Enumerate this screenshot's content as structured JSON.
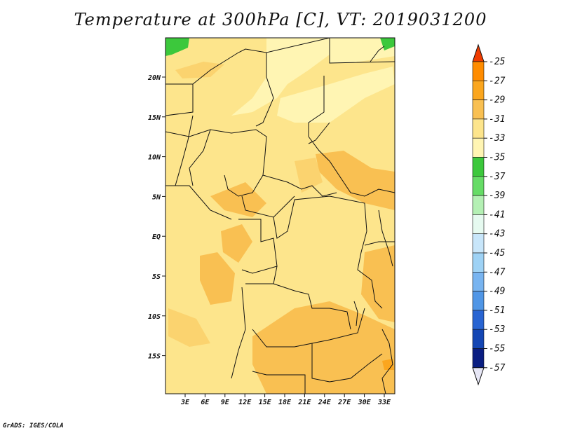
{
  "title": "Temperature at 300hPa [C], VT: 2019031200",
  "footer": "GrADS: IGES/COLA",
  "map": {
    "lat_labels": [
      "20N",
      "15N",
      "10N",
      "5N",
      "EQ",
      "5S",
      "10S",
      "15S"
    ],
    "lon_labels": [
      "3E",
      "6E",
      "9E",
      "12E",
      "15E",
      "18E",
      "21E",
      "24E",
      "27E",
      "30E",
      "33E"
    ]
  },
  "colors": {
    "base": "#fde58c",
    "light": "#fff5b3",
    "warm": "#f9c052",
    "mid": "#fbd36f",
    "green_dark": "#3cc83c",
    "green_mid": "#66dc66",
    "border": "#111111"
  },
  "colorbar": {
    "labels": [
      "-25",
      "-27",
      "-29",
      "-31",
      "-33",
      "-35",
      "-37",
      "-39",
      "-41",
      "-43",
      "-45",
      "-47",
      "-49",
      "-51",
      "-53",
      "-55",
      "-57"
    ],
    "colors": [
      "#ff5a00",
      "#ff8c00",
      "#fba61e",
      "#f9c052",
      "#fde58c",
      "#fff5b3",
      "#3cc83c",
      "#66dc66",
      "#b4f0b4",
      "#e6faf0",
      "#c8e6fa",
      "#9ed2f5",
      "#78b4f0",
      "#5096e6",
      "#2864d2",
      "#1446b4",
      "#0a1e82",
      "#000c50"
    ],
    "top_arrow_color": "#f03c00",
    "bottom_arrow_color": "#e6e6f5"
  }
}
